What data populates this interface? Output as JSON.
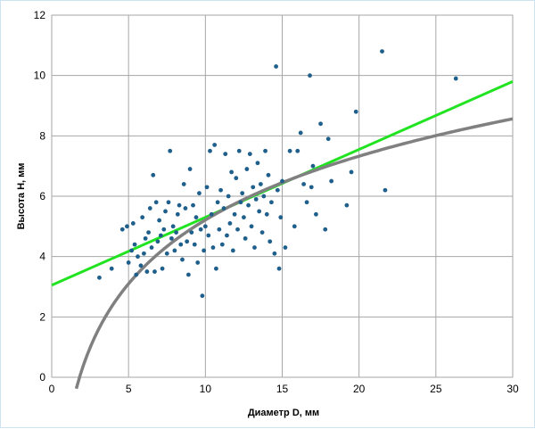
{
  "chart_data": {
    "type": "scatter",
    "title": "",
    "xlabel": "Диаметр D, мм",
    "ylabel": "Высота H, мм",
    "xlim": [
      0,
      30
    ],
    "ylim": [
      0,
      12
    ],
    "xticks": [
      0,
      5,
      10,
      15,
      20,
      25,
      30
    ],
    "yticks": [
      0,
      2,
      4,
      6,
      8,
      10,
      12
    ],
    "grid": true,
    "legend": "none",
    "colors": {
      "points": "#1f5f8b",
      "linear": "#22e322",
      "log": "#808080",
      "grid": "#a6a6a6"
    },
    "points": [
      [
        3.1,
        3.3
      ],
      [
        3.9,
        3.6
      ],
      [
        4.6,
        4.9
      ],
      [
        4.9,
        5.0
      ],
      [
        5.0,
        3.8
      ],
      [
        5.2,
        4.2
      ],
      [
        5.3,
        5.1
      ],
      [
        5.5,
        3.4
      ],
      [
        5.4,
        4.4
      ],
      [
        5.6,
        4.0
      ],
      [
        5.8,
        3.7
      ],
      [
        5.9,
        5.3
      ],
      [
        6.0,
        4.1
      ],
      [
        6.1,
        4.6
      ],
      [
        6.2,
        3.5
      ],
      [
        6.3,
        4.8
      ],
      [
        6.4,
        5.6
      ],
      [
        6.5,
        4.3
      ],
      [
        6.6,
        6.7
      ],
      [
        6.7,
        3.5
      ],
      [
        6.8,
        5.8
      ],
      [
        6.9,
        4.5
      ],
      [
        7.0,
        5.2
      ],
      [
        7.1,
        4.7
      ],
      [
        7.2,
        3.6
      ],
      [
        7.3,
        4.9
      ],
      [
        7.4,
        5.5
      ],
      [
        7.5,
        4.1
      ],
      [
        7.6,
        5.8
      ],
      [
        7.7,
        7.5
      ],
      [
        7.8,
        4.6
      ],
      [
        7.9,
        5.0
      ],
      [
        8.0,
        4.2
      ],
      [
        8.1,
        4.8
      ],
      [
        8.2,
        5.4
      ],
      [
        8.3,
        5.7
      ],
      [
        8.4,
        4.4
      ],
      [
        8.5,
        3.9
      ],
      [
        8.6,
        6.4
      ],
      [
        8.7,
        5.6
      ],
      [
        8.8,
        4.5
      ],
      [
        8.9,
        3.4
      ],
      [
        9.0,
        6.9
      ],
      [
        9.1,
        4.8
      ],
      [
        9.2,
        5.7
      ],
      [
        9.3,
        4.4
      ],
      [
        9.4,
        5.3
      ],
      [
        9.5,
        3.8
      ],
      [
        9.6,
        6.1
      ],
      [
        9.7,
        4.9
      ],
      [
        9.8,
        2.7
      ],
      [
        9.9,
        4.2
      ],
      [
        10.0,
        5.0
      ],
      [
        10.1,
        6.3
      ],
      [
        10.2,
        4.7
      ],
      [
        10.3,
        7.5
      ],
      [
        10.4,
        5.4
      ],
      [
        10.5,
        4.3
      ],
      [
        10.6,
        7.7
      ],
      [
        10.7,
        3.6
      ],
      [
        10.8,
        5.8
      ],
      [
        10.9,
        4.9
      ],
      [
        11.0,
        6.2
      ],
      [
        11.1,
        4.4
      ],
      [
        11.2,
        5.6
      ],
      [
        11.3,
        7.4
      ],
      [
        11.4,
        4.7
      ],
      [
        11.5,
        6.0
      ],
      [
        11.6,
        5.1
      ],
      [
        11.7,
        6.8
      ],
      [
        11.8,
        4.2
      ],
      [
        11.9,
        5.4
      ],
      [
        12.0,
        6.6
      ],
      [
        12.1,
        4.9
      ],
      [
        12.2,
        7.5
      ],
      [
        12.3,
        5.8
      ],
      [
        12.4,
        6.1
      ],
      [
        12.5,
        5.3
      ],
      [
        12.6,
        4.6
      ],
      [
        12.7,
        6.9
      ],
      [
        12.8,
        5.7
      ],
      [
        12.9,
        7.4
      ],
      [
        13.0,
        5.0
      ],
      [
        13.1,
        6.3
      ],
      [
        13.2,
        4.3
      ],
      [
        13.3,
        5.9
      ],
      [
        13.4,
        7.1
      ],
      [
        13.5,
        5.5
      ],
      [
        13.6,
        6.4
      ],
      [
        13.7,
        4.8
      ],
      [
        13.8,
        6.0
      ],
      [
        13.9,
        7.5
      ],
      [
        14.0,
        5.4
      ],
      [
        14.1,
        6.7
      ],
      [
        14.2,
        4.5
      ],
      [
        14.3,
        5.8
      ],
      [
        14.5,
        4.1
      ],
      [
        14.6,
        10.3
      ],
      [
        14.7,
        6.2
      ],
      [
        14.8,
        3.6
      ],
      [
        14.9,
        5.3
      ],
      [
        15.0,
        6.5
      ],
      [
        15.2,
        4.3
      ],
      [
        15.5,
        7.5
      ],
      [
        15.8,
        5.0
      ],
      [
        16.0,
        7.5
      ],
      [
        16.2,
        8.1
      ],
      [
        16.4,
        6.4
      ],
      [
        16.6,
        5.8
      ],
      [
        16.8,
        10.0
      ],
      [
        16.9,
        6.3
      ],
      [
        17.0,
        7.0
      ],
      [
        17.2,
        5.4
      ],
      [
        17.5,
        8.4
      ],
      [
        17.8,
        4.9
      ],
      [
        18.0,
        7.9
      ],
      [
        18.2,
        6.5
      ],
      [
        19.2,
        5.7
      ],
      [
        19.5,
        6.8
      ],
      [
        19.8,
        8.8
      ],
      [
        21.5,
        10.8
      ],
      [
        21.7,
        6.2
      ],
      [
        26.3,
        9.9
      ]
    ],
    "fits": [
      {
        "kind": "linear",
        "intercept": 3.05,
        "slope": 0.225,
        "x_range": [
          0,
          30
        ]
      },
      {
        "kind": "logarithmic",
        "a": -1.81,
        "b": 3.05,
        "x_range": [
          1.6,
          30
        ]
      }
    ]
  }
}
